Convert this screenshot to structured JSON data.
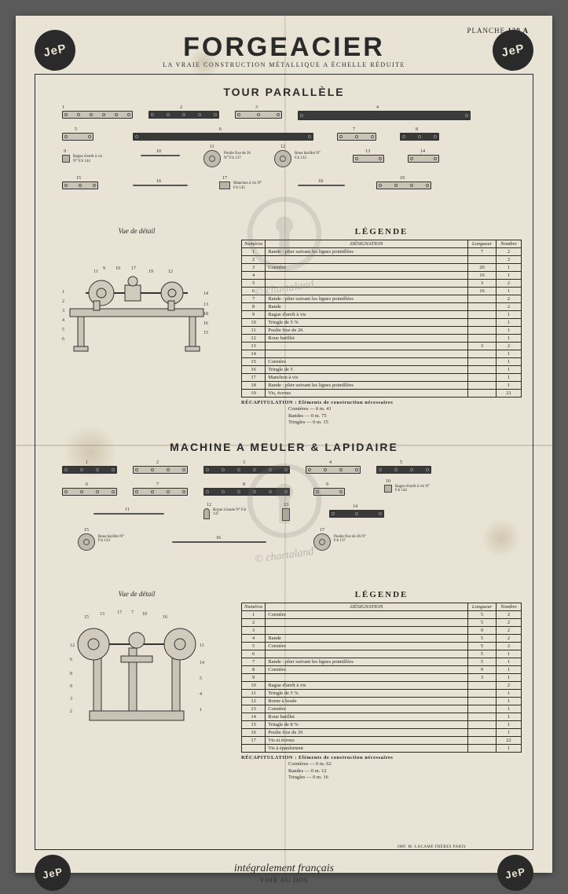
{
  "colors": {
    "paper": "#e8e3d4",
    "ink": "#2a2a2a",
    "part_light": "#c9c4b5",
    "part_dark": "#3a3a3a",
    "page_bg": "#5a5a5a"
  },
  "header": {
    "logo_text": "JeP",
    "title": "FORGEACIER",
    "subtitle": "LA VRAIE CONSTRUCTION MÉTALLIQUE A ÉCHELLE RÉDUITE",
    "planche_label": "PLANCHE",
    "planche_num": "120 A"
  },
  "section1": {
    "title": "TOUR PARALLÈLE",
    "detail_caption": "Vue de détail",
    "legend_title": "LÉGENDE",
    "legend_columns": [
      "Numéros",
      "DÉSIGNATION",
      "Longueur",
      "Nombre"
    ],
    "legend_rows": [
      {
        "n": "1",
        "d": "Bande : plier suivant les lignes pointillées",
        "l": "7",
        "nb": "2"
      },
      {
        "n": "2",
        "d": "",
        "l": "",
        "nb": "2"
      },
      {
        "n": "3",
        "d": "Cornière",
        "l": "20",
        "nb": "1"
      },
      {
        "n": "4",
        "d": "",
        "l": "16",
        "nb": "1"
      },
      {
        "n": "5",
        "d": "",
        "l": "3",
        "nb": "2"
      },
      {
        "n": "6",
        "d": "",
        "l": "16",
        "nb": "1"
      },
      {
        "n": "7",
        "d": "Bande : plier suivant les lignes pointillées",
        "l": "",
        "nb": "2"
      },
      {
        "n": "8",
        "d": "Bande",
        "l": "",
        "nb": "2"
      },
      {
        "n": "9",
        "d": "Bague d'arrêt à vis",
        "l": "",
        "nb": "1"
      },
      {
        "n": "10",
        "d": "Tringle de 5 %",
        "l": "",
        "nb": "1"
      },
      {
        "n": "11",
        "d": "Poulie fixe de 26",
        "l": "",
        "nb": "1"
      },
      {
        "n": "12",
        "d": "Roue barillet",
        "l": "",
        "nb": "1"
      },
      {
        "n": "13",
        "d": "",
        "l": "3",
        "nb": "2"
      },
      {
        "n": "14",
        "d": "",
        "l": "",
        "nb": "1"
      },
      {
        "n": "15",
        "d": "Cornière",
        "l": "",
        "nb": "1"
      },
      {
        "n": "16",
        "d": "Tringle de 5",
        "l": "",
        "nb": "1"
      },
      {
        "n": "17",
        "d": "Manchon à vis",
        "l": "",
        "nb": "1"
      },
      {
        "n": "18",
        "d": "Bande : plier suivant les lignes pointillées",
        "l": "",
        "nb": "1"
      },
      {
        "n": "19",
        "d": "Vis, écrous",
        "l": "",
        "nb": "21"
      }
    ],
    "recap_label": "RÉCAPITULATION : Eléments de construction nécessaires",
    "recap_lines": [
      "Cornières — 0 m. 41",
      "Bandes — 0 m. 75",
      "Tringles — 0 m. 15"
    ],
    "part_labels": {
      "p1": "1",
      "p2": "2",
      "p3": "3",
      "p4": "4",
      "p5": "5",
      "p6": "6",
      "p7": "7",
      "p8": "8",
      "p9": "9",
      "p9t": "Bague d'arrêt à vis N° F.b 144",
      "p10": "10",
      "p11": "11",
      "p11t": "Poulie fixe de 26 N° F.b 137",
      "p12": "12",
      "p12t": "Roue barillet N° F.b 133",
      "p13": "13",
      "p14": "14",
      "p15": "15",
      "p16": "16",
      "p17": "17",
      "p17t": "Manchon à vis N° F.b 145",
      "p18": "18",
      "p19": "19"
    }
  },
  "section2": {
    "title": "MACHINE A MEULER & LAPIDAIRE",
    "detail_caption": "Vue de détail",
    "legend_title": "LÉGENDE",
    "legend_columns": [
      "Numéros",
      "DÉSIGNATION",
      "Longueur",
      "Nombre"
    ],
    "legend_rows": [
      {
        "n": "1",
        "d": "Cornière",
        "l": "5",
        "nb": "2"
      },
      {
        "n": "2",
        "d": "",
        "l": "5",
        "nb": "2"
      },
      {
        "n": "3",
        "d": "",
        "l": "9",
        "nb": "2"
      },
      {
        "n": "4",
        "d": "Bande",
        "l": "5",
        "nb": "2"
      },
      {
        "n": "5",
        "d": "Cornière",
        "l": "5",
        "nb": "2"
      },
      {
        "n": "6",
        "d": "",
        "l": "5",
        "nb": "1"
      },
      {
        "n": "7",
        "d": "Bande : plier suivant les lignes pointillées",
        "l": "5",
        "nb": "1"
      },
      {
        "n": "8",
        "d": "Cornière",
        "l": "9",
        "nb": "1"
      },
      {
        "n": "9",
        "d": "",
        "l": "3",
        "nb": "1"
      },
      {
        "n": "10",
        "d": "Bague d'arrêt à vis",
        "l": "",
        "nb": "2"
      },
      {
        "n": "11",
        "d": "Tringle de 5 %",
        "l": "",
        "nb": "1"
      },
      {
        "n": "12",
        "d": "Borne à boule",
        "l": "",
        "nb": "1"
      },
      {
        "n": "13",
        "d": "Cornière",
        "l": "",
        "nb": "1"
      },
      {
        "n": "14",
        "d": "Roue barillet",
        "l": "",
        "nb": "1"
      },
      {
        "n": "15",
        "d": "Tringle de 8 %",
        "l": "",
        "nb": "1"
      },
      {
        "n": "16",
        "d": "Poulie fixe de 26",
        "l": "",
        "nb": "1"
      },
      {
        "n": "17",
        "d": "Vis et écrous",
        "l": "",
        "nb": "22"
      },
      {
        "n": "",
        "d": "Vis à épaulement",
        "l": "",
        "nb": "1"
      }
    ],
    "recap_label": "RÉCAPITULATION : Eléments de construction nécessaires",
    "recap_lines": [
      "Cornières — 0 m. 62",
      "Bandes — 0 m. 12",
      "Tringles — 0 m. 16"
    ],
    "part_labels": {
      "p1": "1",
      "p2": "2",
      "p3": "3",
      "p4": "4",
      "p5": "5",
      "p6": "6",
      "p7": "7",
      "p8": "8",
      "p9": "9",
      "p10": "10",
      "p10t": "Bague d'arrêt à vis N° F.b 144",
      "p11": "11",
      "p12": "12",
      "p12t": "Borne à boule N° F.b 147",
      "p13": "13",
      "p14": "14",
      "p15": "15",
      "p15t": "Roue barillet N° F.b 133",
      "p16": "16",
      "p17": "17",
      "p17t": "Poulie fixe de 26 N° F.b 137"
    }
  },
  "footer": {
    "logo_text": "JeP",
    "script": "intégralement français",
    "imprint": "IMP. M. LACAME FRÈRES PARIS",
    "voir": "VOIR AU DOS"
  },
  "watermark": {
    "text": "© chartaland"
  }
}
